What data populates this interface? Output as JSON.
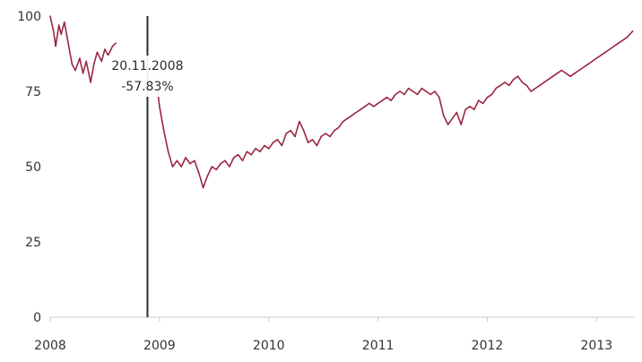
{
  "chart_data": {
    "type": "line",
    "title": "",
    "xlabel": "",
    "ylabel": "",
    "ylim": [
      0,
      100
    ],
    "xlim": [
      2008.0,
      2013.35
    ],
    "y_ticks": [
      0,
      25,
      50,
      75,
      100
    ],
    "x_ticks": [
      {
        "value": 2008,
        "label": "2008"
      },
      {
        "value": 2009,
        "label": "2009"
      },
      {
        "value": 2010,
        "label": "2010"
      },
      {
        "value": 2011,
        "label": "2011"
      },
      {
        "value": 2012,
        "label": "2012"
      },
      {
        "value": 2013,
        "label": "2013"
      }
    ],
    "grid": false,
    "legend": "none",
    "line_color": "#9b2642",
    "series": [
      {
        "points": [
          [
            2008.0,
            100
          ],
          [
            2008.03,
            95
          ],
          [
            2008.05,
            90
          ],
          [
            2008.08,
            97
          ],
          [
            2008.1,
            94
          ],
          [
            2008.13,
            98
          ],
          [
            2008.17,
            90
          ],
          [
            2008.2,
            84
          ],
          [
            2008.23,
            82
          ],
          [
            2008.27,
            86
          ],
          [
            2008.3,
            81
          ],
          [
            2008.33,
            85
          ],
          [
            2008.37,
            78
          ],
          [
            2008.4,
            84
          ],
          [
            2008.43,
            88
          ],
          [
            2008.47,
            85
          ],
          [
            2008.5,
            89
          ],
          [
            2008.53,
            87
          ],
          [
            2008.57,
            90
          ],
          [
            2008.6,
            91
          ],
          [
            null,
            null
          ],
          [
            2008.97,
            79
          ],
          [
            2009.0,
            70
          ],
          [
            2009.04,
            62
          ],
          [
            2009.08,
            55
          ],
          [
            2009.12,
            50
          ],
          [
            2009.16,
            52
          ],
          [
            2009.2,
            50
          ],
          [
            2009.24,
            53
          ],
          [
            2009.28,
            51
          ],
          [
            2009.32,
            52
          ],
          [
            2009.36,
            48
          ],
          [
            2009.4,
            43
          ],
          [
            2009.44,
            47
          ],
          [
            2009.48,
            50
          ],
          [
            2009.52,
            49
          ],
          [
            2009.56,
            51
          ],
          [
            2009.6,
            52
          ],
          [
            2009.64,
            50
          ],
          [
            2009.68,
            53
          ],
          [
            2009.72,
            54
          ],
          [
            2009.76,
            52
          ],
          [
            2009.8,
            55
          ],
          [
            2009.84,
            54
          ],
          [
            2009.88,
            56
          ],
          [
            2009.92,
            55
          ],
          [
            2009.96,
            57
          ],
          [
            2010.0,
            56
          ],
          [
            2010.04,
            58
          ],
          [
            2010.08,
            59
          ],
          [
            2010.12,
            57
          ],
          [
            2010.16,
            61
          ],
          [
            2010.2,
            62
          ],
          [
            2010.24,
            60
          ],
          [
            2010.28,
            65
          ],
          [
            2010.32,
            62
          ],
          [
            2010.36,
            58
          ],
          [
            2010.4,
            59
          ],
          [
            2010.44,
            57
          ],
          [
            2010.48,
            60
          ],
          [
            2010.52,
            61
          ],
          [
            2010.56,
            60
          ],
          [
            2010.6,
            62
          ],
          [
            2010.64,
            63
          ],
          [
            2010.68,
            65
          ],
          [
            2010.72,
            66
          ],
          [
            2010.76,
            67
          ],
          [
            2010.8,
            68
          ],
          [
            2010.84,
            69
          ],
          [
            2010.88,
            70
          ],
          [
            2010.92,
            71
          ],
          [
            2010.96,
            70
          ],
          [
            2011.0,
            71
          ],
          [
            2011.04,
            72
          ],
          [
            2011.08,
            73
          ],
          [
            2011.12,
            72
          ],
          [
            2011.16,
            74
          ],
          [
            2011.2,
            75
          ],
          [
            2011.24,
            74
          ],
          [
            2011.28,
            76
          ],
          [
            2011.32,
            75
          ],
          [
            2011.36,
            74
          ],
          [
            2011.4,
            76
          ],
          [
            2011.44,
            75
          ],
          [
            2011.48,
            74
          ],
          [
            2011.52,
            75
          ],
          [
            2011.56,
            73
          ],
          [
            2011.6,
            67
          ],
          [
            2011.64,
            64
          ],
          [
            2011.68,
            66
          ],
          [
            2011.72,
            68
          ],
          [
            2011.76,
            64
          ],
          [
            2011.8,
            69
          ],
          [
            2011.84,
            70
          ],
          [
            2011.88,
            69
          ],
          [
            2011.92,
            72
          ],
          [
            2011.96,
            71
          ],
          [
            2012.0,
            73
          ],
          [
            2012.04,
            74
          ],
          [
            2012.08,
            76
          ],
          [
            2012.12,
            77
          ],
          [
            2012.16,
            78
          ],
          [
            2012.2,
            77
          ],
          [
            2012.24,
            79
          ],
          [
            2012.28,
            80
          ],
          [
            2012.32,
            78
          ],
          [
            2012.36,
            77
          ],
          [
            2012.4,
            75
          ],
          [
            2012.44,
            76
          ],
          [
            2012.48,
            77
          ],
          [
            2012.52,
            78
          ],
          [
            2012.56,
            79
          ],
          [
            2012.6,
            80
          ],
          [
            2012.64,
            81
          ],
          [
            2012.68,
            82
          ],
          [
            2012.72,
            81
          ],
          [
            2012.76,
            80
          ],
          [
            2012.8,
            81
          ],
          [
            2012.84,
            82
          ],
          [
            2012.88,
            83
          ],
          [
            2012.92,
            84
          ],
          [
            2012.96,
            85
          ],
          [
            2013.0,
            86
          ],
          [
            2013.04,
            87
          ],
          [
            2013.08,
            88
          ],
          [
            2013.12,
            89
          ],
          [
            2013.16,
            90
          ],
          [
            2013.2,
            91
          ],
          [
            2013.24,
            92
          ],
          [
            2013.28,
            93
          ],
          [
            2013.33,
            95
          ]
        ]
      }
    ],
    "annotation": {
      "x": 2008.89,
      "date_label": "20.11.2008",
      "value_label": "-57.83%"
    }
  }
}
